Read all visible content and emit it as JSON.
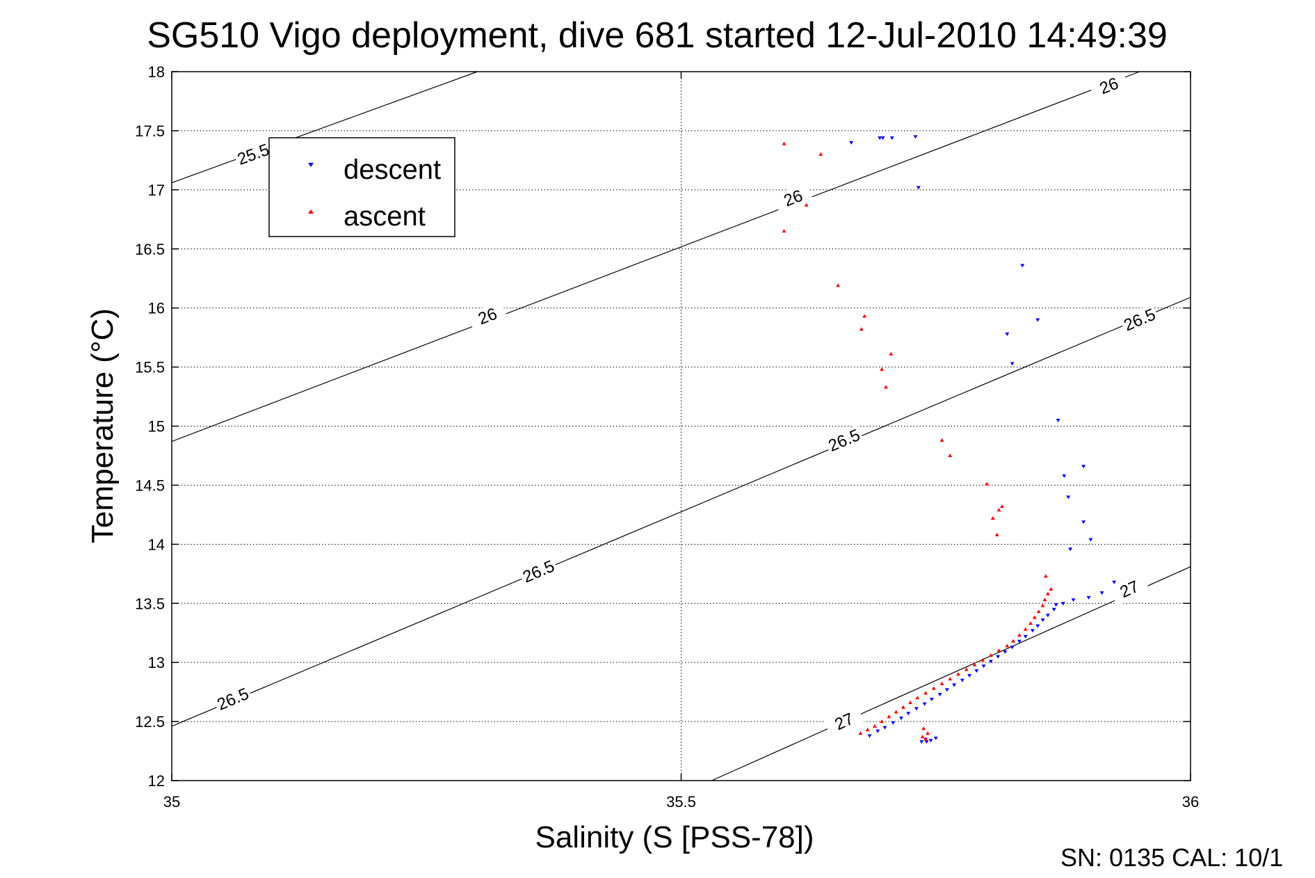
{
  "chart_data": {
    "type": "scatter",
    "title": "SG510 Vigo deployment, dive 681 started 12-Jul-2010 14:49:39",
    "xlabel": "Salinity (S [PSS-78])",
    "ylabel": "Temperature (°C)",
    "xlim": [
      35,
      36
    ],
    "ylim": [
      12,
      18
    ],
    "xticks": [
      "35",
      "35.5",
      "36"
    ],
    "yticks": [
      "12",
      "12.5",
      "13",
      "13.5",
      "14",
      "14.5",
      "15",
      "15.5",
      "16",
      "16.5",
      "17",
      "17.5",
      "18"
    ],
    "grid": true,
    "legend_position": "top-left",
    "footer": "SN: 0135  CAL: 10/1",
    "series": [
      {
        "name": "descent",
        "color": "#0000ff",
        "marker": "triangle-down",
        "points": [
          [
            35.667,
            17.4
          ],
          [
            35.695,
            17.44
          ],
          [
            35.698,
            17.44
          ],
          [
            35.707,
            17.44
          ],
          [
            35.73,
            17.45
          ],
          [
            35.733,
            17.02
          ],
          [
            35.835,
            16.36
          ],
          [
            35.85,
            15.9
          ],
          [
            35.82,
            15.78
          ],
          [
            35.825,
            15.53
          ],
          [
            35.87,
            15.05
          ],
          [
            35.895,
            14.66
          ],
          [
            35.876,
            14.58
          ],
          [
            35.88,
            14.4
          ],
          [
            35.895,
            14.19
          ],
          [
            35.902,
            14.04
          ],
          [
            35.882,
            13.96
          ],
          [
            35.925,
            13.68
          ],
          [
            35.913,
            13.59
          ],
          [
            35.9,
            13.55
          ],
          [
            35.885,
            13.53
          ],
          [
            35.875,
            13.5
          ],
          [
            35.868,
            13.49
          ],
          [
            35.866,
            13.45
          ],
          [
            35.86,
            13.4
          ],
          [
            35.855,
            13.36
          ],
          [
            35.85,
            13.31
          ],
          [
            35.845,
            13.27
          ],
          [
            35.838,
            13.22
          ],
          [
            35.832,
            13.18
          ],
          [
            35.825,
            13.13
          ],
          [
            35.818,
            13.09
          ],
          [
            35.811,
            13.05
          ],
          [
            35.804,
            13.01
          ],
          [
            35.797,
            12.97
          ],
          [
            35.79,
            12.93
          ],
          [
            35.783,
            12.89
          ],
          [
            35.776,
            12.85
          ],
          [
            35.768,
            12.81
          ],
          [
            35.761,
            12.77
          ],
          [
            35.754,
            12.73
          ],
          [
            35.746,
            12.69
          ],
          [
            35.739,
            12.65
          ],
          [
            35.731,
            12.61
          ],
          [
            35.723,
            12.57
          ],
          [
            35.716,
            12.53
          ],
          [
            35.708,
            12.49
          ],
          [
            35.7,
            12.45
          ],
          [
            35.693,
            12.42
          ],
          [
            35.685,
            12.38
          ],
          [
            35.74,
            12.35
          ],
          [
            35.745,
            12.34
          ],
          [
            35.75,
            12.36
          ],
          [
            35.736,
            12.33
          ],
          [
            35.741,
            12.33
          ]
        ]
      },
      {
        "name": "ascent",
        "color": "#ff0000",
        "marker": "triangle-up",
        "points": [
          [
            35.601,
            17.39
          ],
          [
            35.637,
            17.3
          ],
          [
            35.623,
            16.87
          ],
          [
            35.601,
            16.65
          ],
          [
            35.654,
            16.19
          ],
          [
            35.68,
            15.93
          ],
          [
            35.677,
            15.82
          ],
          [
            35.706,
            15.61
          ],
          [
            35.697,
            15.48
          ],
          [
            35.701,
            15.33
          ],
          [
            35.756,
            14.88
          ],
          [
            35.764,
            14.75
          ],
          [
            35.8,
            14.51
          ],
          [
            35.815,
            14.32
          ],
          [
            35.812,
            14.29
          ],
          [
            35.806,
            14.22
          ],
          [
            35.81,
            14.08
          ],
          [
            35.858,
            13.73
          ],
          [
            35.863,
            13.62
          ],
          [
            35.86,
            13.58
          ],
          [
            35.857,
            13.53
          ],
          [
            35.855,
            13.48
          ],
          [
            35.851,
            13.43
          ],
          [
            35.847,
            13.38
          ],
          [
            35.843,
            13.33
          ],
          [
            35.838,
            13.28
          ],
          [
            35.832,
            13.23
          ],
          [
            35.826,
            13.18
          ],
          [
            35.82,
            13.14
          ],
          [
            35.812,
            13.1
          ],
          [
            35.804,
            13.06
          ],
          [
            35.796,
            13.02
          ],
          [
            35.788,
            12.98
          ],
          [
            35.78,
            12.94
          ],
          [
            35.772,
            12.9
          ],
          [
            35.764,
            12.86
          ],
          [
            35.756,
            12.82
          ],
          [
            35.748,
            12.78
          ],
          [
            35.74,
            12.74
          ],
          [
            35.732,
            12.7
          ],
          [
            35.725,
            12.66
          ],
          [
            35.718,
            12.62
          ],
          [
            35.711,
            12.58
          ],
          [
            35.704,
            12.54
          ],
          [
            35.697,
            12.5
          ],
          [
            35.69,
            12.46
          ],
          [
            35.683,
            12.43
          ],
          [
            35.676,
            12.4
          ],
          [
            35.738,
            12.44
          ],
          [
            35.742,
            12.4
          ],
          [
            35.737,
            12.37
          ],
          [
            35.74,
            12.35
          ]
        ]
      }
    ],
    "contours": [
      {
        "label": "25.5",
        "segment": [
          [
            35.0,
            17.06
          ],
          [
            35.3,
            18.0
          ]
        ],
        "labels_at": [
          [
            35.08,
            17.3
          ]
        ]
      },
      {
        "label": "26",
        "segment": [
          [
            35.0,
            14.87
          ],
          [
            35.95,
            18.0
          ]
        ],
        "labels_at": [
          [
            35.31,
            15.93
          ],
          [
            35.61,
            16.93
          ],
          [
            35.92,
            17.88
          ]
        ]
      },
      {
        "label": "26.5",
        "segment": [
          [
            35.0,
            12.46
          ],
          [
            36.0,
            16.09
          ]
        ],
        "labels_at": [
          [
            35.06,
            12.69
          ],
          [
            35.36,
            13.77
          ],
          [
            35.66,
            14.88
          ],
          [
            35.95,
            15.9
          ]
        ]
      },
      {
        "label": "27",
        "segment": [
          [
            35.53,
            12.0
          ],
          [
            36.0,
            13.81
          ]
        ],
        "labels_at": [
          [
            35.66,
            12.5
          ],
          [
            35.94,
            13.62
          ]
        ]
      }
    ]
  }
}
